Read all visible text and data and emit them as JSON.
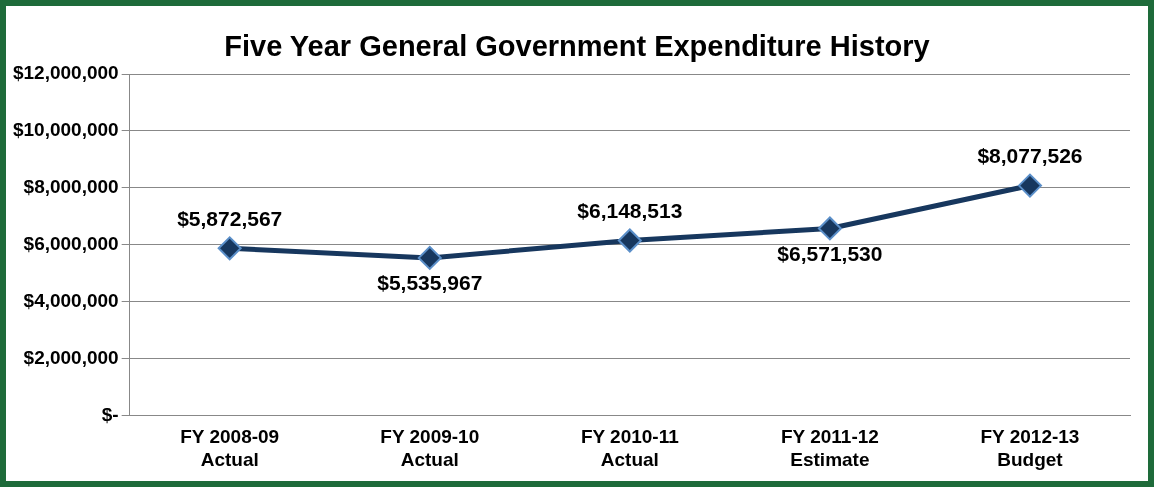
{
  "chart_data": {
    "type": "line",
    "title": "Five Year General Government Expenditure History",
    "categories": [
      "FY 2008-09\nActual",
      "FY 2009-10\nActual",
      "FY 2010-11\nActual",
      "FY 2011-12\nEstimate",
      "FY 2012-13\nBudget"
    ],
    "series": [
      {
        "color": "#17375e",
        "values": [
          5872567,
          5535967,
          6148513,
          6571530,
          8077526
        ],
        "value_labels": [
          "$5,872,567",
          "$5,535,967",
          "$6,148,513",
          "$6,571,530",
          "$8,077,526"
        ]
      }
    ],
    "ylim": [
      0,
      12000000
    ],
    "yticks": [
      {
        "value": 0,
        "label": "$-"
      },
      {
        "value": 2000000,
        "label": "$2,000,000"
      },
      {
        "value": 4000000,
        "label": "$4,000,000"
      },
      {
        "value": 6000000,
        "label": "$6,000,000"
      },
      {
        "value": 8000000,
        "label": "$8,000,000"
      },
      {
        "value": 10000000,
        "label": "$10,000,000"
      },
      {
        "value": 12000000,
        "label": "$12,000,000"
      }
    ],
    "grid": "y",
    "legend": false,
    "marker": "diamond",
    "line_style": "solid"
  }
}
